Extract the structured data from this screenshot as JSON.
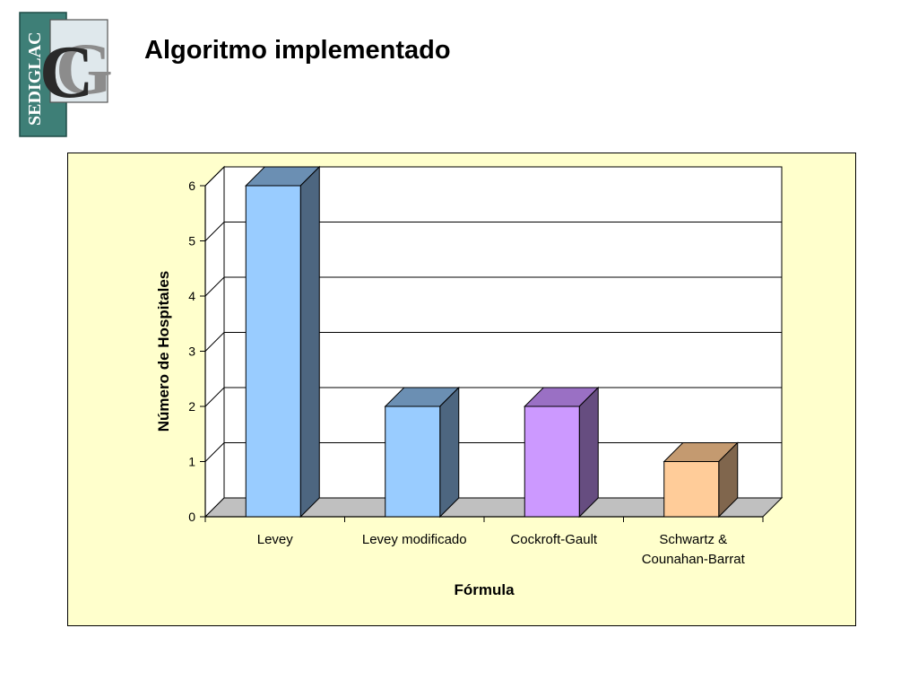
{
  "slide": {
    "title": "Algoritmo implementado",
    "logo_text": "SEDIGLAC",
    "logo_letters": "CG"
  },
  "colors": {
    "frame_background": "#ffffcc",
    "plot_background": "#ffffff",
    "floor": "#c0c0c0",
    "logo_teal": "#3e7f77",
    "logo_gray": "#9a9a9a"
  },
  "chart_data": {
    "type": "bar",
    "style": "3d-column",
    "title": "",
    "xlabel": "Fórmula",
    "ylabel": "Número de Hospitales",
    "ylim": [
      0,
      6
    ],
    "yticks": [
      0,
      1,
      2,
      3,
      4,
      5,
      6
    ],
    "grid": true,
    "legend": "none",
    "categories": [
      [
        "Levey"
      ],
      [
        "Levey modificado"
      ],
      [
        "Cockroft-Gault"
      ],
      [
        "Schwartz &",
        "Counahan-Barrat"
      ]
    ],
    "values": [
      6,
      2,
      2,
      1
    ],
    "bar_colors": [
      {
        "front": "#99ccff",
        "top": "#6b8fb3",
        "side": "#4d6680"
      },
      {
        "front": "#99ccff",
        "top": "#6b8fb3",
        "side": "#4d6680"
      },
      {
        "front": "#cc99ff",
        "top": "#9a70c4",
        "side": "#664d80"
      },
      {
        "front": "#ffcc99",
        "top": "#c49a70",
        "side": "#80664d"
      }
    ]
  }
}
